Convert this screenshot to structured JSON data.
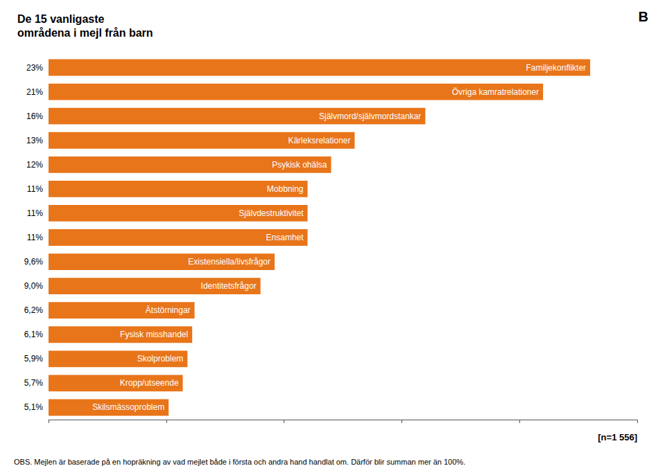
{
  "chart_data": {
    "type": "bar",
    "orientation": "horizontal",
    "title": "De 15 vanligaste\nområdena i mejl från barn",
    "categories": [
      "Familjekonflikter",
      "Övriga kamratrelationer",
      "Självmord/självmordstankar",
      "Kärleksrelationer",
      "Psykisk ohälsa",
      "Mobbning",
      "Självdestruktivitet",
      "Ensamhet",
      "Existensiella/livsfrågor",
      "Identitetsfrågor",
      "Ätstörningar",
      "Fysisk misshandel",
      "Skolproblem",
      "Kropp/utseende",
      "Skilsmässoproblem"
    ],
    "values": [
      23,
      21,
      16,
      13,
      12,
      11,
      11,
      11,
      9.6,
      9.0,
      6.2,
      6.1,
      5.9,
      5.7,
      5.1
    ],
    "value_labels": [
      "23%",
      "21%",
      "16%",
      "13%",
      "12%",
      "11%",
      "11%",
      "11%",
      "9,6%",
      "9,0%",
      "6,2%",
      "6,1%",
      "5,9%",
      "5,7%",
      "5,1%"
    ],
    "data_labels": true,
    "color": "#E8751A",
    "xlim": [
      0,
      25
    ],
    "xticks": [
      0,
      5,
      10,
      15,
      20,
      25
    ],
    "grid": false,
    "tick_labels": false,
    "annotations": [
      "B",
      "[n=1 556]",
      "OBS. Mejlen är baserade på en hopräkning av vad mejlet både i första och andra hand handlat om. Därför blir summan mer än 100%."
    ]
  }
}
